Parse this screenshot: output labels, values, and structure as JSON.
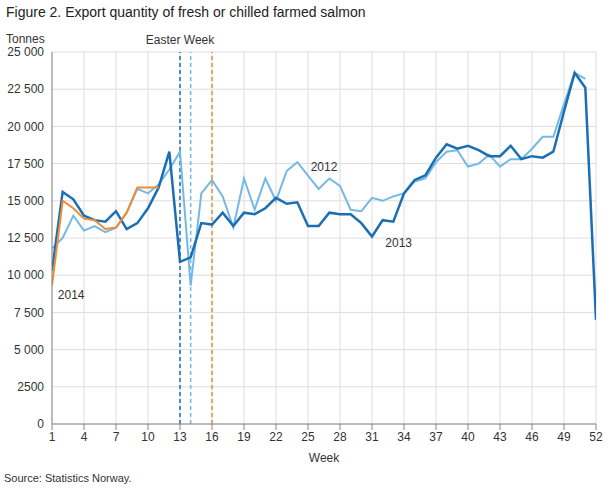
{
  "chart_data": {
    "type": "line",
    "title": "Figure 2. Export quantity of fresh or chilled farmed salmon",
    "y_label": "Tonnes",
    "x_label": "Week",
    "source": "Source: Statistics Norway.",
    "x": [
      1,
      2,
      3,
      4,
      5,
      6,
      7,
      8,
      9,
      10,
      11,
      12,
      13,
      14,
      15,
      16,
      17,
      18,
      19,
      20,
      21,
      22,
      23,
      24,
      25,
      26,
      27,
      28,
      29,
      30,
      31,
      32,
      33,
      34,
      35,
      36,
      37,
      38,
      39,
      40,
      41,
      42,
      43,
      44,
      45,
      46,
      47,
      48,
      49,
      50,
      51,
      52
    ],
    "xlim": [
      1,
      52
    ],
    "xticks": [
      1,
      4,
      7,
      10,
      13,
      16,
      19,
      22,
      25,
      28,
      31,
      34,
      37,
      40,
      43,
      46,
      49,
      52
    ],
    "ylim": [
      0,
      25000
    ],
    "yticks": [
      0,
      2500,
      {
        "value": 5000,
        "label": "5 000"
      },
      {
        "value": 7500,
        "label": "7 500"
      },
      {
        "value": 10000,
        "label": "10 000"
      },
      {
        "value": 12500,
        "label": "12 500"
      },
      {
        "value": 15000,
        "label": "15 000"
      },
      {
        "value": 17500,
        "label": "17 500"
      },
      {
        "value": 20000,
        "label": "20 000"
      },
      {
        "value": 22500,
        "label": "22 500"
      },
      {
        "value": 25000,
        "label": "25 000"
      }
    ],
    "grid": true,
    "series": [
      {
        "name": "2012",
        "color": "#74b9e6",
        "values": [
          11800,
          12500,
          14000,
          13000,
          13300,
          12900,
          13200,
          14200,
          15800,
          15500,
          16100,
          17100,
          18300,
          9300,
          15500,
          16400,
          15300,
          13200,
          16500,
          14400,
          16500,
          15000,
          17000,
          17600,
          16700,
          15800,
          16500,
          16000,
          14400,
          14300,
          15200,
          15000,
          15300,
          15500,
          16300,
          16500,
          17600,
          18300,
          18400,
          17300,
          17500,
          18100,
          17300,
          17800,
          17800,
          18500,
          19300,
          19300,
          21500,
          23600,
          23200,
          null
        ]
      },
      {
        "name": "2013",
        "color": "#1a6fb4",
        "values": [
          10300,
          15600,
          15100,
          14000,
          13700,
          13600,
          14300,
          13100,
          13500,
          14500,
          15900,
          18300,
          10900,
          11200,
          13500,
          13400,
          14200,
          13300,
          14200,
          14100,
          14500,
          15200,
          14800,
          14900,
          13300,
          13300,
          14200,
          14100,
          14100,
          13500,
          12600,
          13700,
          13600,
          15500,
          16400,
          16700,
          17900,
          18800,
          18500,
          18700,
          18400,
          18000,
          18000,
          18700,
          17800,
          18000,
          17900,
          18300,
          21000,
          23600,
          22600,
          7000
        ]
      },
      {
        "name": "2014",
        "color": "#f08c32",
        "values": [
          9300,
          15000,
          14500,
          13800,
          13700,
          13100,
          13200,
          14200,
          15900,
          15900,
          15900,
          null,
          null,
          null,
          null,
          null,
          null,
          null,
          null,
          null,
          null,
          null,
          null,
          null,
          null,
          null,
          null,
          null,
          null,
          null,
          null,
          null,
          null,
          null,
          null,
          null,
          null,
          null,
          null,
          null,
          null,
          null,
          null,
          null,
          null,
          null,
          null,
          null,
          null,
          null,
          null,
          null
        ]
      }
    ],
    "vlines": [
      {
        "x": 13,
        "color": "#1a6fb4",
        "line_style": "dashed",
        "text": "Easter Week"
      },
      {
        "x": 14,
        "color": "#74b9e6",
        "line_style": "dashed"
      },
      {
        "x": 16,
        "color": "#f08c32",
        "line_style": "dashed"
      }
    ],
    "annotations": [
      {
        "text": "2012",
        "x": 26.5,
        "y": 17300,
        "color": "#74b9e6"
      },
      {
        "text": "2013",
        "x": 33.5,
        "y": 12200,
        "color": "#1a6fb4"
      },
      {
        "text": "2014",
        "x": 2.8,
        "y": 8700,
        "color": "#f08c32"
      }
    ]
  }
}
